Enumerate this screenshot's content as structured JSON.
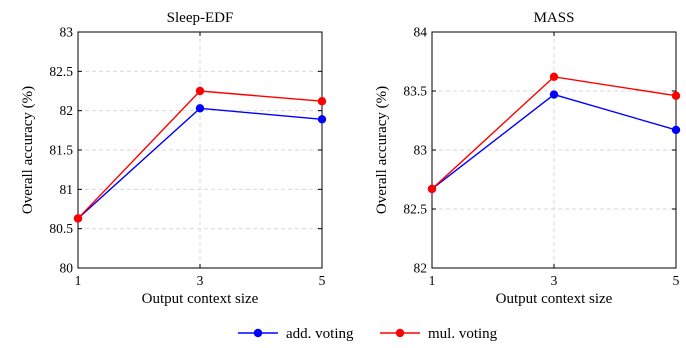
{
  "legend": [
    {
      "label": "add. voting",
      "color": "#0000ff"
    },
    {
      "label": "mul. voting",
      "color": "#ff0000"
    }
  ],
  "chart_data": [
    {
      "type": "line",
      "title": "Sleep-EDF",
      "xlabel": "Output context size",
      "ylabel": "Overall accuracy (%)",
      "x": [
        1,
        3,
        5
      ],
      "xticks": [
        "1",
        "3",
        "5"
      ],
      "xlim": [
        1,
        5
      ],
      "ylim": [
        80,
        83
      ],
      "yticks": [
        "80",
        "80.5",
        "81",
        "81.5",
        "82",
        "82.5",
        "83"
      ],
      "grid": true,
      "series": [
        {
          "name": "add. voting",
          "color": "#0000ff",
          "values": [
            80.63,
            82.03,
            81.89
          ]
        },
        {
          "name": "mul. voting",
          "color": "#ff0000",
          "values": [
            80.63,
            82.25,
            82.12
          ]
        }
      ]
    },
    {
      "type": "line",
      "title": "MASS",
      "xlabel": "Output context size",
      "ylabel": "Overall accuracy (%)",
      "x": [
        1,
        3,
        5
      ],
      "xticks": [
        "1",
        "3",
        "5"
      ],
      "xlim": [
        1,
        5
      ],
      "ylim": [
        82,
        84
      ],
      "yticks": [
        "82",
        "82.5",
        "83",
        "83.5",
        "84"
      ],
      "grid": true,
      "series": [
        {
          "name": "add. voting",
          "color": "#0000ff",
          "values": [
            82.67,
            83.47,
            83.17
          ]
        },
        {
          "name": "mul. voting",
          "color": "#ff0000",
          "values": [
            82.67,
            83.62,
            83.46
          ]
        }
      ]
    }
  ]
}
